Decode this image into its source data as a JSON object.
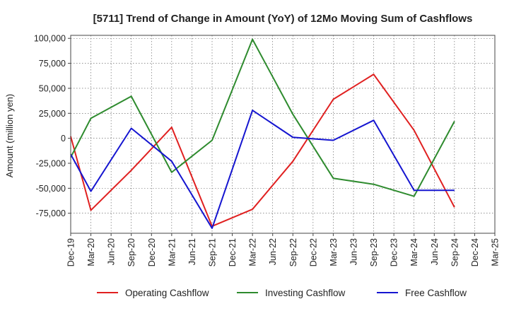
{
  "chart_data": {
    "type": "line",
    "title": "[5711]  Trend of Change in Amount (YoY) of 12Mo Moving Sum of Cashflows",
    "xlabel": "",
    "ylabel": "Amount (million yen)",
    "ylim": [
      -95000,
      103000
    ],
    "yticks": [
      100000,
      75000,
      50000,
      25000,
      0,
      -25000,
      -50000,
      -75000
    ],
    "ytick_labels": [
      "100,000",
      "75,000",
      "50,000",
      "25,000",
      "0",
      "-25,000",
      "-50,000",
      "-75,000"
    ],
    "categories": [
      "Dec-19",
      "Mar-20",
      "Jun-20",
      "Sep-20",
      "Dec-20",
      "Mar-21",
      "Jun-21",
      "Sep-21",
      "Dec-21",
      "Mar-22",
      "Jun-22",
      "Sep-22",
      "Dec-22",
      "Mar-23",
      "Jun-23",
      "Sep-23",
      "Dec-23",
      "Mar-24",
      "Jun-24",
      "Sep-24",
      "Dec-24",
      "Mar-25"
    ],
    "grid": true,
    "legend_position": "bottom",
    "series": [
      {
        "name": "Operating Cashflow",
        "color": "#e02020",
        "values": [
          2000,
          -72000,
          null,
          -32000,
          null,
          11000,
          null,
          -88000,
          null,
          -71000,
          null,
          -23000,
          null,
          39000,
          null,
          64000,
          null,
          8000,
          null,
          -69000,
          null,
          null
        ]
      },
      {
        "name": "Investing Cashflow",
        "color": "#2e8b2e",
        "values": [
          -19000,
          20000,
          null,
          42000,
          null,
          -34000,
          null,
          -2000,
          null,
          99000,
          null,
          24000,
          null,
          -40000,
          null,
          -46000,
          null,
          -58000,
          null,
          17000,
          null,
          null
        ]
      },
      {
        "name": "Free Cashflow",
        "color": "#1515d0",
        "values": [
          -16000,
          -53000,
          null,
          10000,
          null,
          -23000,
          null,
          -90000,
          null,
          28000,
          null,
          1000,
          null,
          -2000,
          null,
          18000,
          null,
          -52000,
          null,
          -52000,
          null,
          null
        ]
      }
    ]
  }
}
